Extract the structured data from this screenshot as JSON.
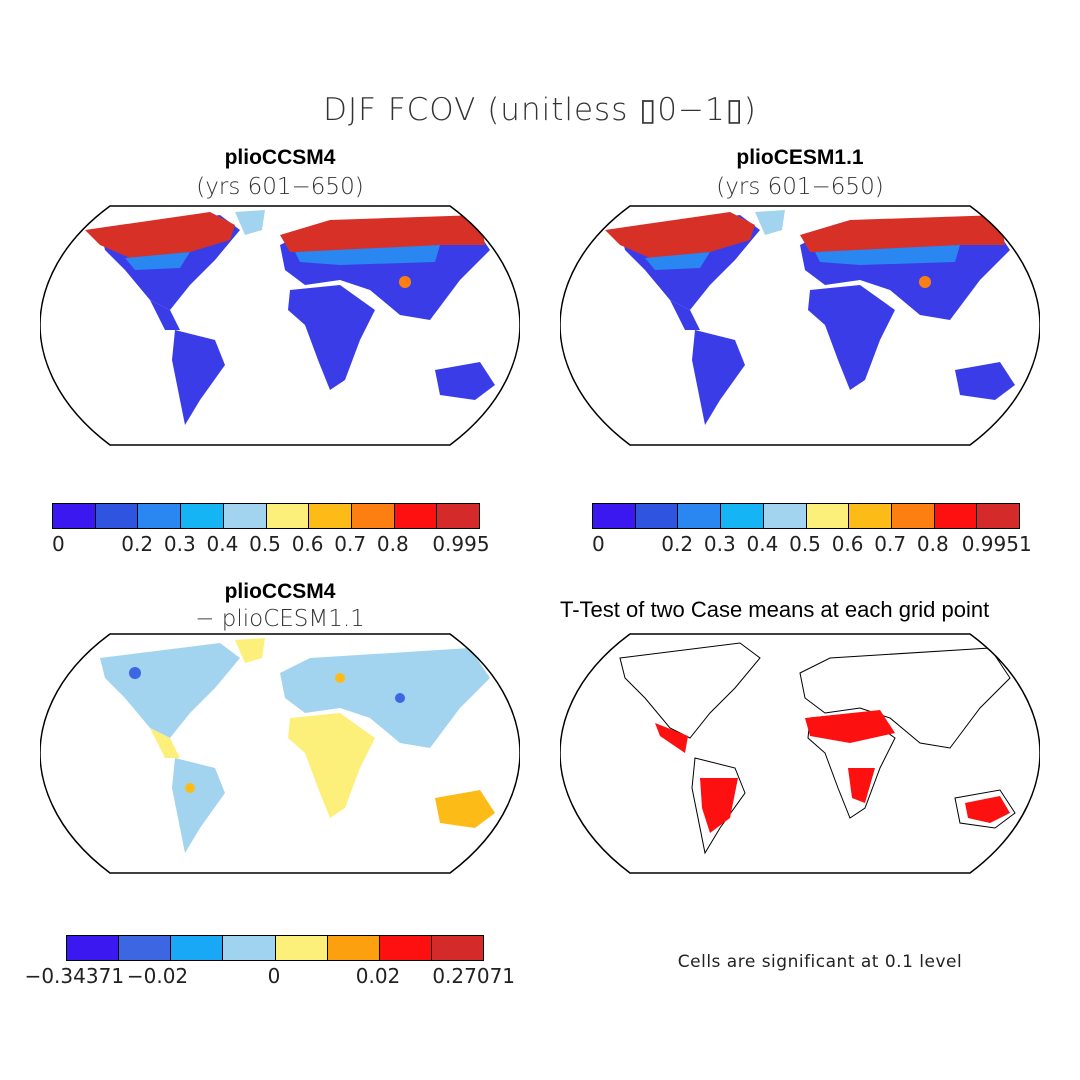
{
  "title": "DJF FCOV (unitless ▯0−1▯)",
  "panels": {
    "p1": {
      "title": "plioCCSM4",
      "subtitle": "(yrs 601−650)"
    },
    "p2": {
      "title": "plioCESM1.1",
      "subtitle": "(yrs 601−650)"
    },
    "p3": {
      "title": "plioCCSM4",
      "subtitle": "− plioCESM1.1"
    },
    "p4": {
      "title": "T-Test of two Case means at each grid point"
    }
  },
  "colorbars": {
    "cb1": {
      "colors": [
        "#3b18f0",
        "#2f55e0",
        "#2a86f0",
        "#15b5f5",
        "#a3d4ef",
        "#fdf07a",
        "#fdbb18",
        "#fd7f12",
        "#fc1010",
        "#d42a2a"
      ],
      "labels": [
        "0",
        "0.2",
        "0.3",
        "0.4",
        "0.5",
        "0.6",
        "0.7",
        "0.8",
        "0.995"
      ]
    },
    "cb2": {
      "colors": [
        "#3b18f0",
        "#2f55e0",
        "#2a86f0",
        "#15b5f5",
        "#a3d4ef",
        "#fdf07a",
        "#fdbb18",
        "#fd7f12",
        "#fc1010",
        "#d42a2a"
      ],
      "labels": [
        "0",
        "0.2",
        "0.3",
        "0.4",
        "0.5",
        "0.6",
        "0.7",
        "0.8",
        "0.9951"
      ]
    },
    "cb3": {
      "colors": [
        "#3b18f0",
        "#3c66e2",
        "#18a8f5",
        "#9fd3ef",
        "#fdf07a",
        "#fda010",
        "#fc1010",
        "#d42a2a"
      ],
      "labels": [
        "−0.34371",
        "−0.02",
        "0",
        "0.02",
        "0.27071"
      ]
    }
  },
  "note": "Cells are significant at 0.1 level"
}
